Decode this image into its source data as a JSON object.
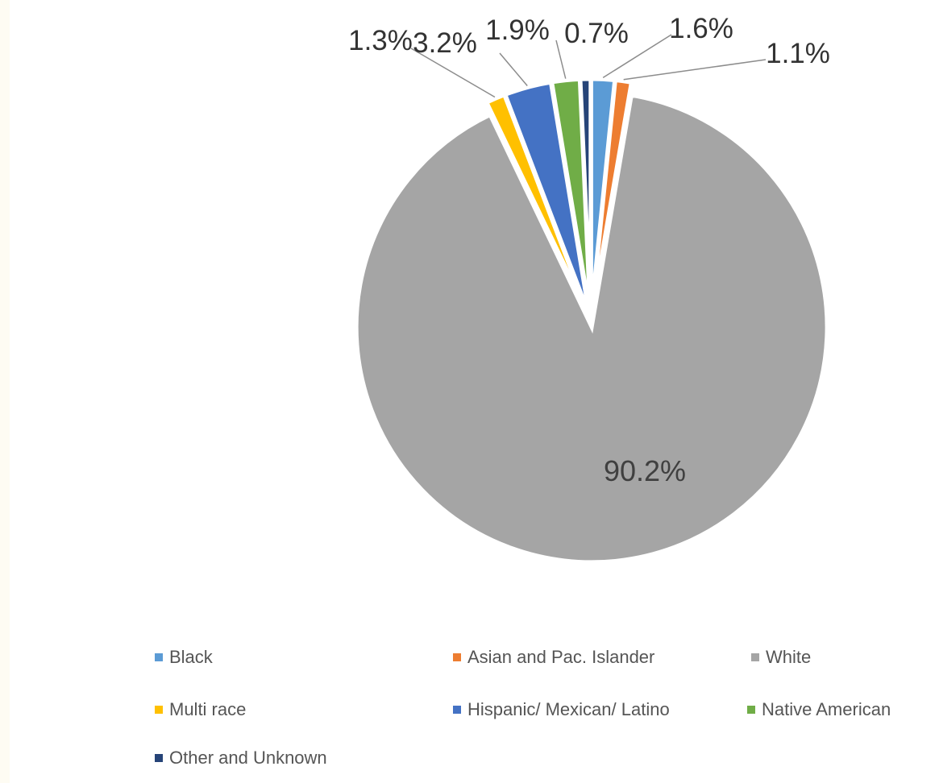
{
  "chart_data": {
    "type": "pie",
    "title": "",
    "slices": [
      {
        "label": "Black",
        "value": 1.6,
        "display": "1.6%",
        "color": "#5b9bd5"
      },
      {
        "label": "Asian and Pac. Islander",
        "value": 1.1,
        "display": "1.1%",
        "color": "#ed7d31"
      },
      {
        "label": "White",
        "value": 90.2,
        "display": "90.2%",
        "color": "#a5a5a5"
      },
      {
        "label": "Multi race",
        "value": 1.3,
        "display": "1.3%",
        "color": "#ffc000"
      },
      {
        "label": "Hispanic/ Mexican/ Latino",
        "value": 3.2,
        "display": "3.2%",
        "color": "#4472c4"
      },
      {
        "label": "Native American",
        "value": 1.9,
        "display": "1.9%",
        "color": "#70ad47"
      },
      {
        "label": "Other and Unknown",
        "value": 0.7,
        "display": "0.7%",
        "color": "#264478"
      }
    ],
    "start_angle": "12 o'clock",
    "direction": "clockwise",
    "legend_position": "bottom"
  }
}
